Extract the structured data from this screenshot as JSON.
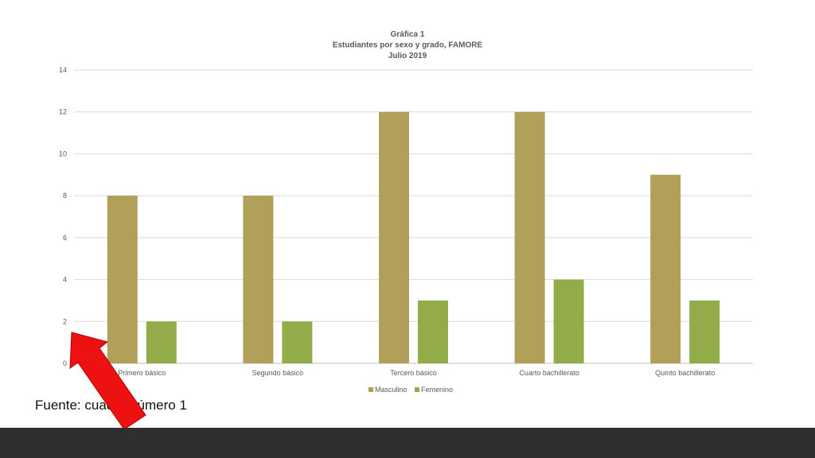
{
  "chart_data": {
    "type": "bar",
    "title": [
      "Gráfica 1",
      "Estudiantes por sexo y grado, FAMORE",
      "Julio 2019"
    ],
    "categories": [
      "Primero básico",
      "Segundo básico",
      "Tercero básico",
      "Cuarto bachillerato",
      "Quinto bachillerato"
    ],
    "series": [
      {
        "name": "Masculino",
        "values": [
          8,
          8,
          12,
          12,
          9
        ],
        "color": "#b0a05a"
      },
      {
        "name": "Femenino",
        "values": [
          2,
          2,
          3,
          4,
          3
        ],
        "color": "#92ac4a"
      }
    ],
    "ylim": [
      0,
      14
    ],
    "yticks": [
      0,
      2,
      4,
      6,
      8,
      10,
      12,
      14
    ],
    "grid": true,
    "legend_position": "bottom"
  },
  "footer": {
    "source_text": "Fuente: cuadro número 1"
  },
  "colors": {
    "annotation_arrow": "#ee1111",
    "footer_bar": "#2f2f2f"
  },
  "annotation": {
    "icon": "red-arrow-icon"
  }
}
